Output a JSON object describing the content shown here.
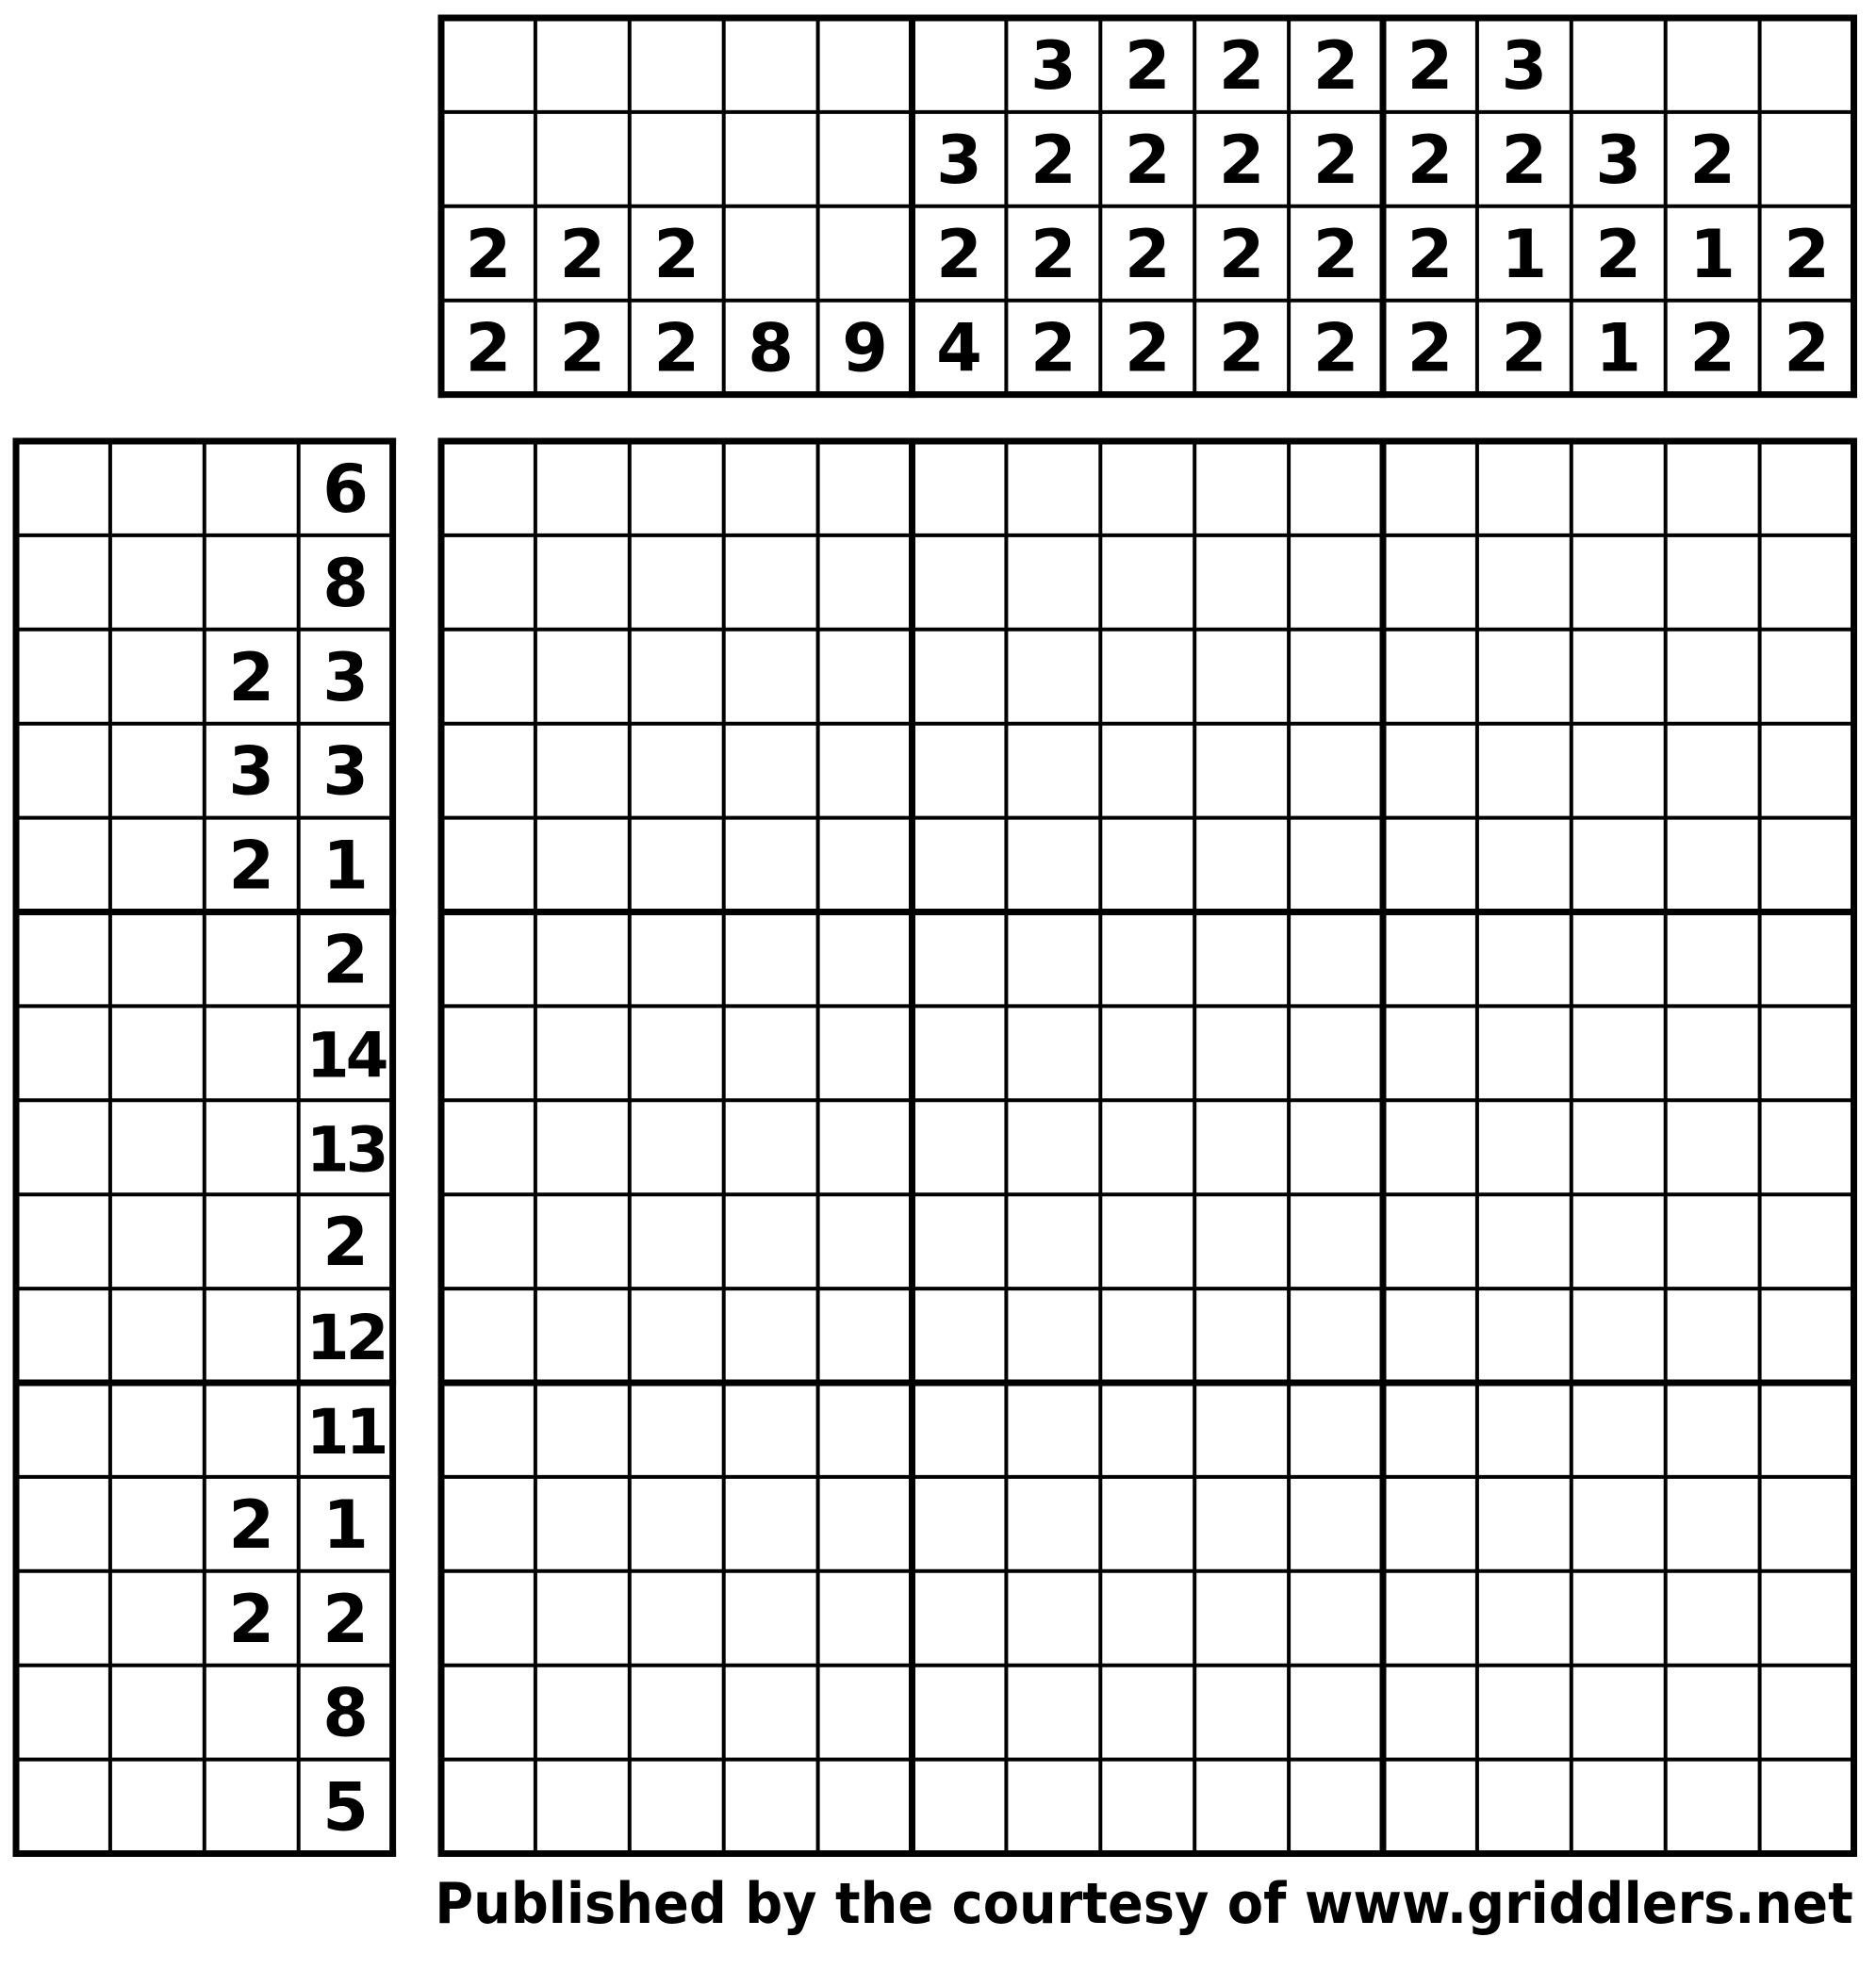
{
  "puzzle": {
    "rows": 15,
    "cols": 15,
    "column_clues": [
      [
        2,
        2
      ],
      [
        2,
        2
      ],
      [
        2,
        2
      ],
      [
        8
      ],
      [
        9
      ],
      [
        3,
        2,
        4
      ],
      [
        3,
        2,
        2,
        2
      ],
      [
        2,
        2,
        2,
        2
      ],
      [
        2,
        2,
        2,
        2
      ],
      [
        2,
        2,
        2,
        2
      ],
      [
        2,
        2,
        2,
        2
      ],
      [
        3,
        2,
        1,
        2
      ],
      [
        3,
        2,
        1
      ],
      [
        2,
        1,
        2
      ],
      [
        2,
        2
      ]
    ],
    "row_clues": [
      [
        6
      ],
      [
        8
      ],
      [
        2,
        3
      ],
      [
        3,
        3
      ],
      [
        2,
        1
      ],
      [
        2
      ],
      [
        14
      ],
      [
        13
      ],
      [
        2
      ],
      [
        12
      ],
      [
        11
      ],
      [
        2,
        1
      ],
      [
        2,
        2
      ],
      [
        8
      ],
      [
        5
      ]
    ],
    "clue_depth_columns": 4,
    "clue_depth_rows": 4
  },
  "footer": {
    "text": "Published by the courtesy of www.griddlers.net"
  },
  "colors": {
    "line": "#000000",
    "background": "#ffffff"
  }
}
